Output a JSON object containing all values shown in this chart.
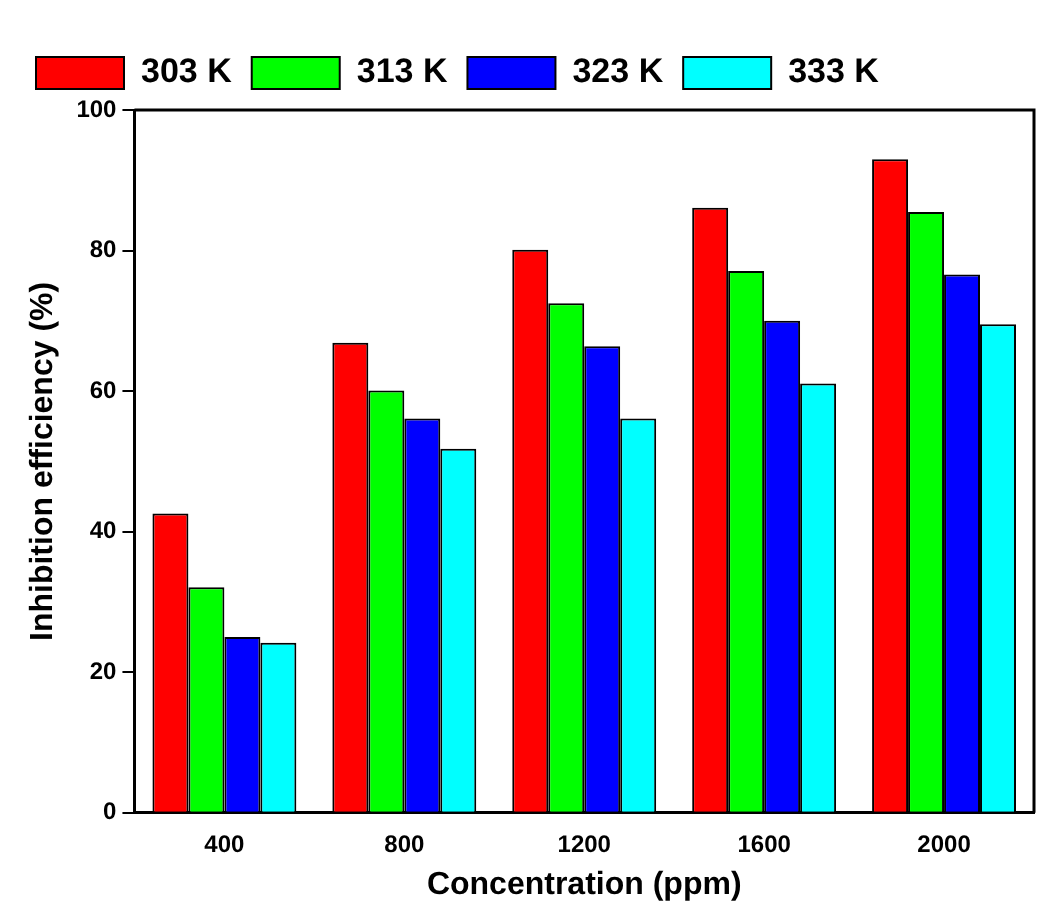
{
  "chart_data": {
    "type": "bar",
    "xlabel": "Concentration (ppm)",
    "ylabel": "Inhibition efficiency (%)",
    "categories": [
      "400",
      "800",
      "1200",
      "1600",
      "2000"
    ],
    "series": [
      {
        "name": "303 K",
        "color": "#ff0000",
        "values": [
          42.6,
          66.9,
          80.1,
          86.1,
          93.0
        ]
      },
      {
        "name": "313 K",
        "color": "#00ff00",
        "values": [
          32.1,
          60.1,
          72.5,
          77.1,
          85.5
        ]
      },
      {
        "name": "323 K",
        "color": "#0000ff",
        "values": [
          25.0,
          56.1,
          66.4,
          70.0,
          76.6
        ]
      },
      {
        "name": "333 K",
        "color": "#00ffff",
        "values": [
          24.2,
          51.8,
          56.1,
          61.1,
          69.5
        ]
      }
    ],
    "ylim": [
      0,
      100
    ],
    "yticks": [
      0,
      20,
      40,
      60,
      80,
      100
    ],
    "grid": false,
    "legend": "top left"
  }
}
